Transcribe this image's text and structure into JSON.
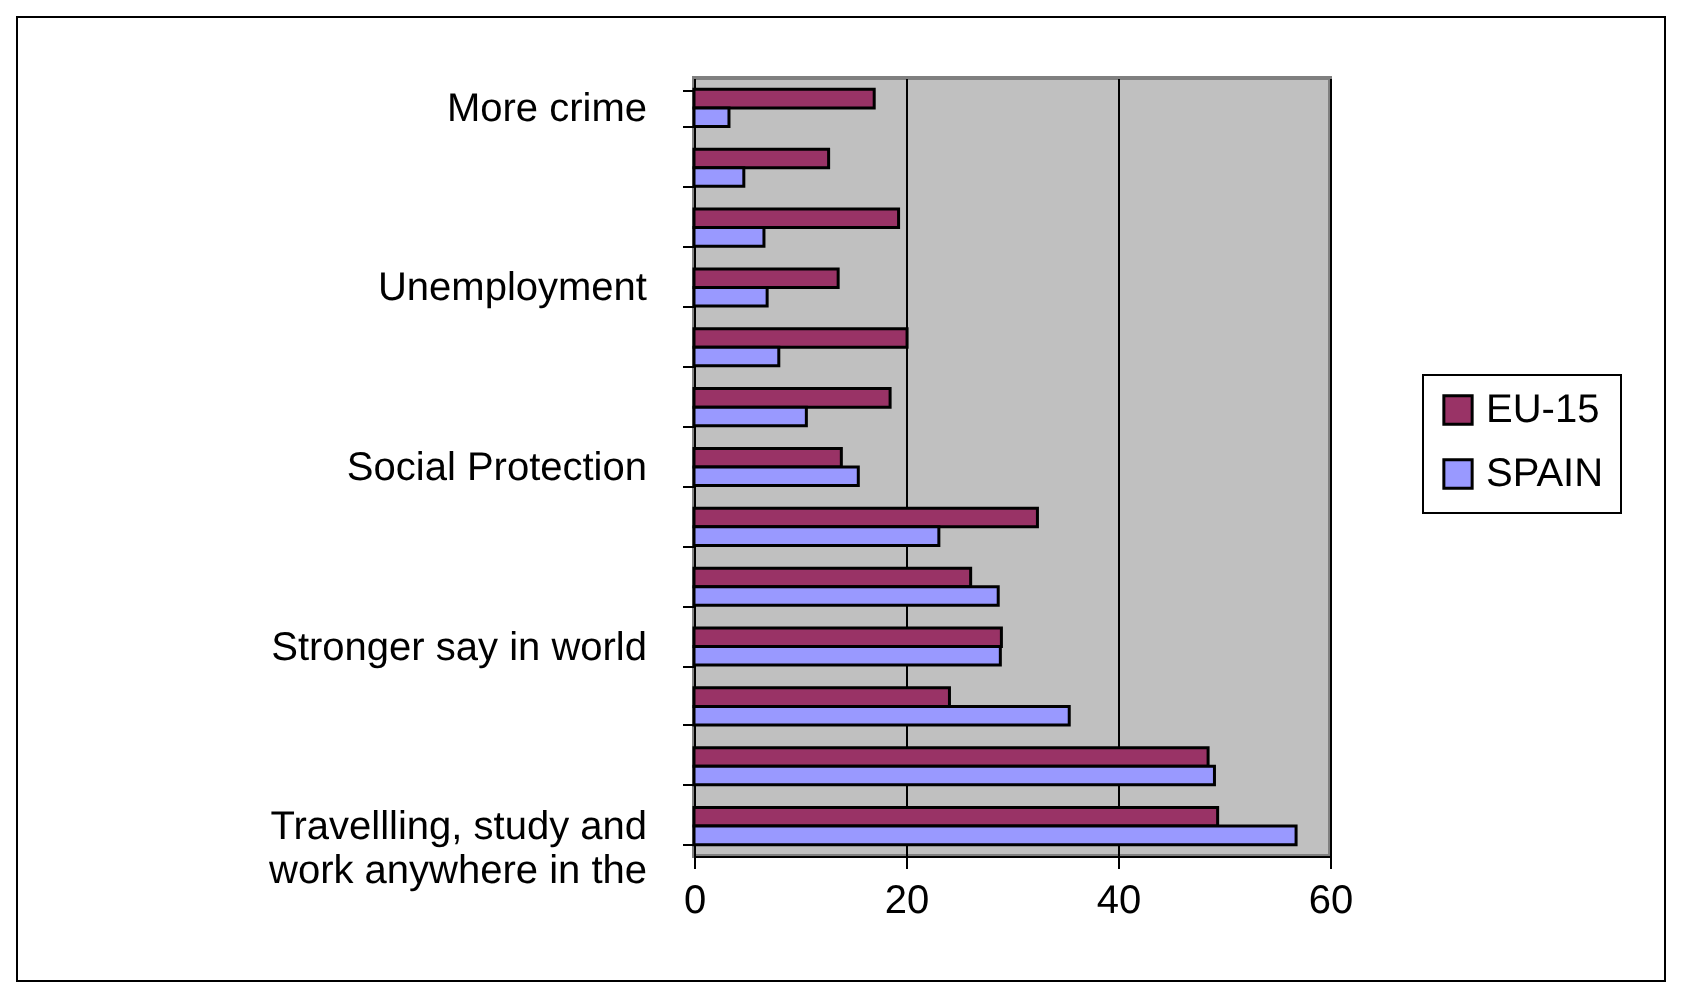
{
  "chart_data": {
    "type": "bar",
    "orientation": "horizontal",
    "categories": [
      "More crime",
      null,
      null,
      "Unemployment",
      null,
      null,
      "Social Protection",
      null,
      null,
      "Stronger say in world",
      null,
      null,
      "Travellling, study and work anywhere in the"
    ],
    "series": [
      {
        "name": "EU-15",
        "color": "#993366",
        "values": [
          17.0,
          12.7,
          19.3,
          13.6,
          20.1,
          18.5,
          13.9,
          32.4,
          26.1,
          29.0,
          24.1,
          48.5,
          49.4
        ]
      },
      {
        "name": "SPAIN",
        "color": "#9999ff",
        "values": [
          3.3,
          4.7,
          6.6,
          6.9,
          8.0,
          10.6,
          15.5,
          23.1,
          28.7,
          28.9,
          35.4,
          49.1,
          56.8
        ]
      }
    ],
    "xlim": [
      0,
      60
    ],
    "xticks": [
      0,
      20,
      40,
      60
    ],
    "grid": "x",
    "legend": "right"
  }
}
